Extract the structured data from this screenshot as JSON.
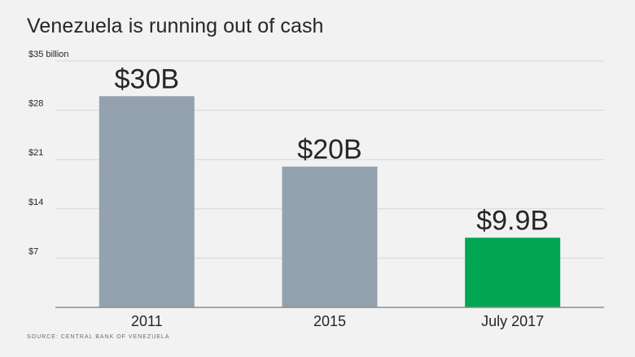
{
  "title": "Venezuela is running out of cash",
  "source": "SOURCE: CENTRAL BANK OF VENEZUELA",
  "chart_data": {
    "type": "bar",
    "categories": [
      "2011",
      "2015",
      "July 2017"
    ],
    "values": [
      30,
      20,
      9.9
    ],
    "data_labels": [
      "$30B",
      "$20B",
      "$9.9B"
    ],
    "colors": [
      "#94a1ae",
      "#94a1ae",
      "#00a651"
    ],
    "y_ticks": [
      0,
      7,
      14,
      21,
      28,
      35
    ],
    "y_tick_labels": [
      "",
      "$7",
      "$14",
      "$21",
      "$28",
      "$35 billion"
    ],
    "ylim": [
      0,
      35
    ],
    "grid": true,
    "legend": "none",
    "title": "Venezuela is running out of cash",
    "xlabel": "",
    "ylabel": ""
  }
}
